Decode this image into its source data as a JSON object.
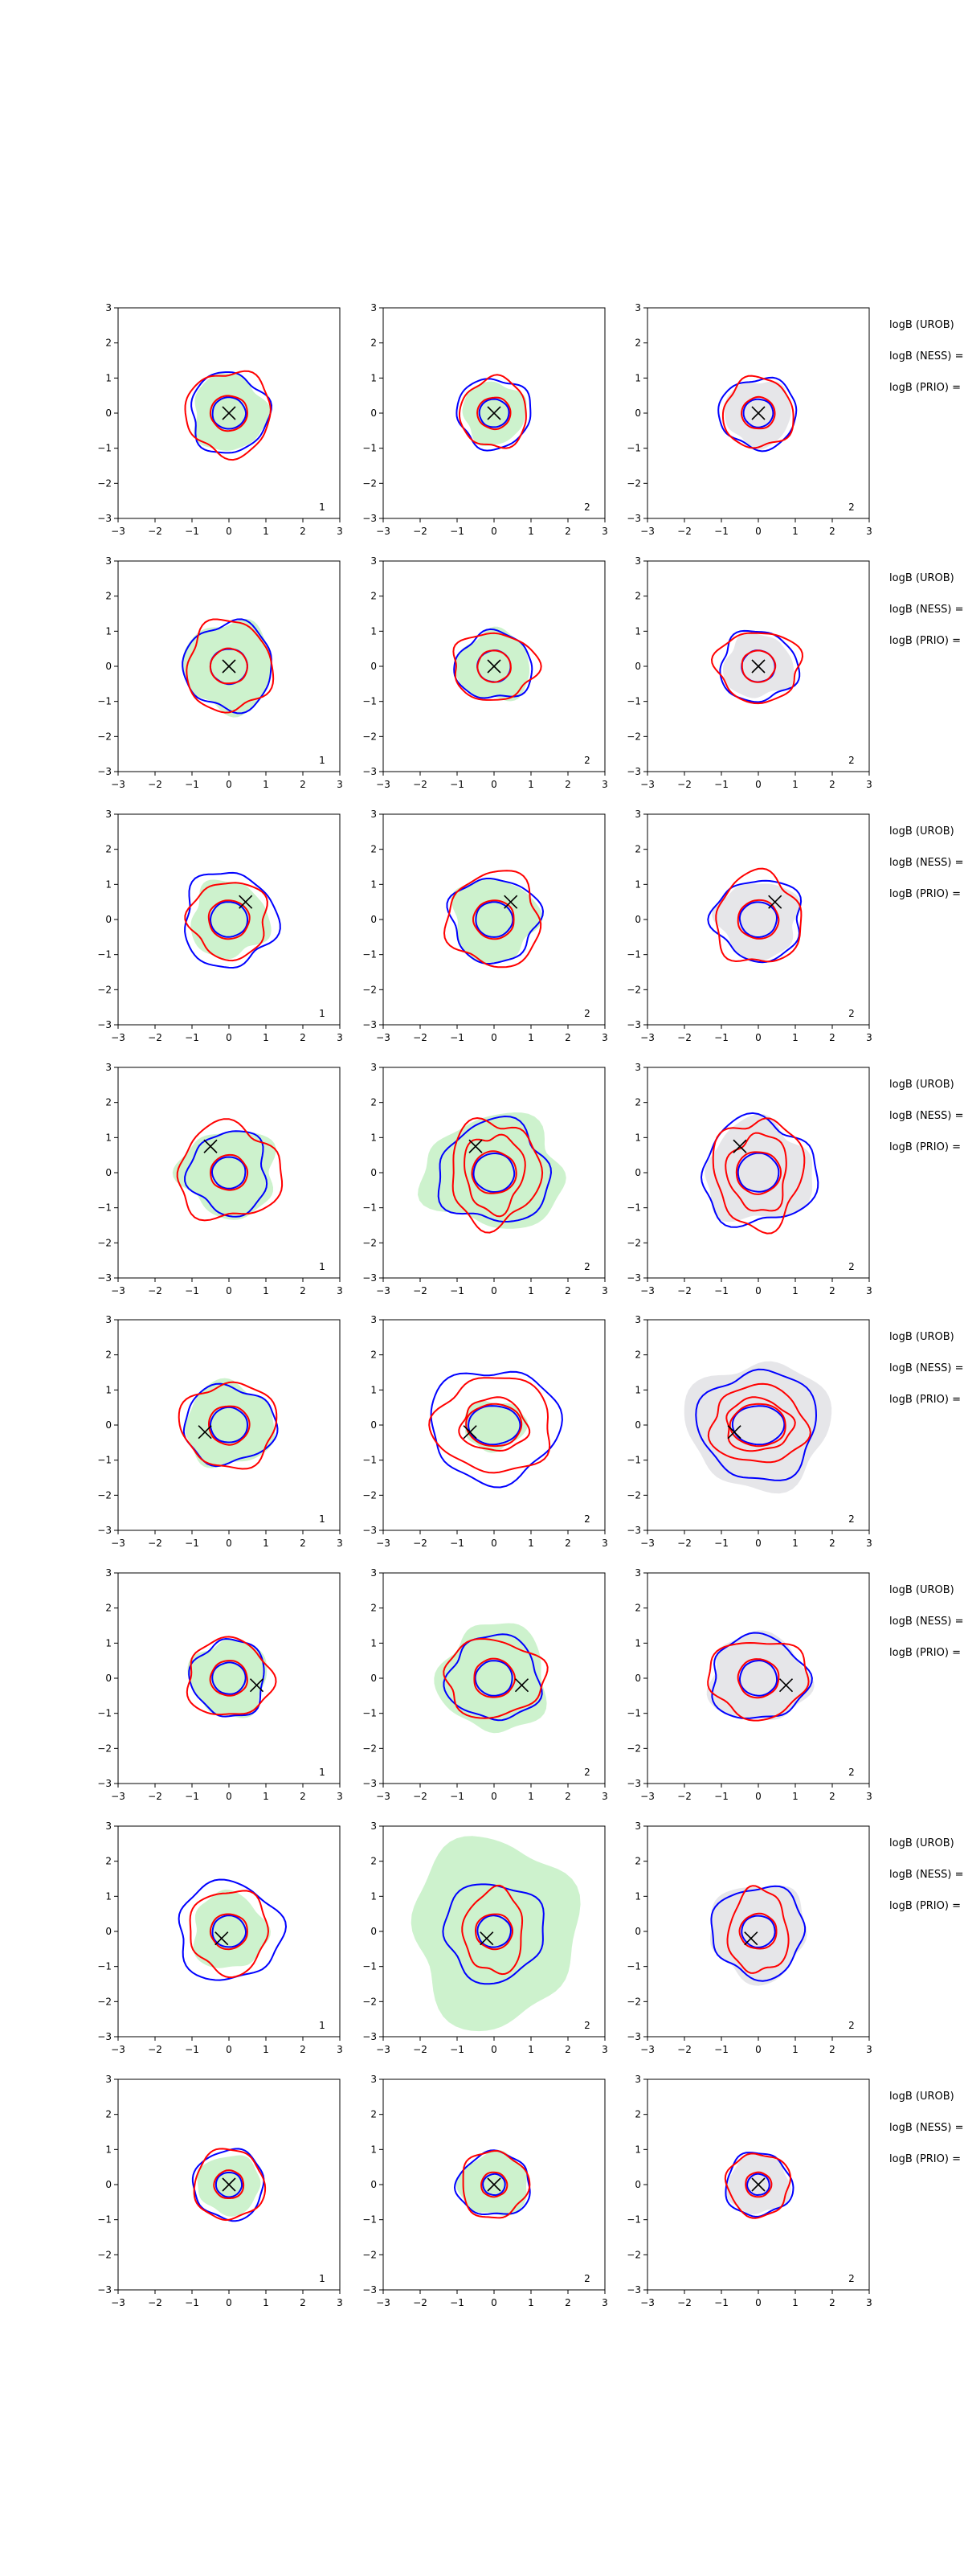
{
  "chart_data": {
    "type": "contour",
    "layout": {
      "rows": 8,
      "cols": 3
    },
    "xlim": [
      -3,
      3
    ],
    "ylim": [
      -3,
      3
    ],
    "xticks": [
      -3,
      -2,
      -1,
      0,
      1,
      2,
      3
    ],
    "yticks": [
      -3,
      -2,
      -1,
      0,
      1,
      2,
      3
    ],
    "colors": {
      "blue_contour": "#0000ff",
      "red_contour": "#ff0000",
      "green_fill": "#cdf2cd",
      "grey_fill": "#e6e6e9",
      "marker": "#000000"
    },
    "row_labels": [
      "logB (UROB)",
      "logB (NESS) =",
      "logB (PRIO) ="
    ],
    "rows": [
      {
        "marker": [
          0.0,
          0.0
        ],
        "panels": [
          {
            "label": "1",
            "fill": "green",
            "blue": [
              [
                0.45,
                0.45
              ],
              [
                1.05,
                1.15
              ]
            ],
            "red": [
              [
                0.5,
                0.5
              ],
              [
                1.15,
                1.2
              ]
            ],
            "green": [
              1.0,
              1.1
            ],
            "wobble": 0.12
          },
          {
            "label": "2",
            "fill": "green",
            "blue": [
              [
                0.4,
                0.4
              ],
              [
                1.0,
                1.0
              ]
            ],
            "red": [
              [
                0.45,
                0.45
              ],
              [
                0.9,
                1.0
              ]
            ],
            "green": [
              0.85,
              0.9
            ],
            "wobble": 0.1
          },
          {
            "label": "2",
            "fill": "grey",
            "blue": [
              [
                0.4,
                0.4
              ],
              [
                1.05,
                1.0
              ]
            ],
            "red": [
              [
                0.45,
                0.45
              ],
              [
                0.95,
                1.0
              ]
            ],
            "green": [
              0.9,
              0.95
            ],
            "wobble": 0.1
          }
        ]
      },
      {
        "marker": [
          0.0,
          0.0
        ],
        "panels": [
          {
            "label": "1",
            "fill": "green",
            "blue": [
              [
                0.5,
                0.5
              ],
              [
                1.2,
                1.25
              ]
            ],
            "red": [
              [
                0.5,
                0.5
              ],
              [
                1.15,
                1.3
              ]
            ],
            "green": [
              1.2,
              1.3
            ],
            "wobble": 0.12
          },
          {
            "label": "2",
            "fill": "green",
            "blue": [
              [
                0.45,
                0.45
              ],
              [
                1.05,
                0.95
              ]
            ],
            "red": [
              [
                0.45,
                0.45
              ],
              [
                1.15,
                0.95
              ]
            ],
            "green": [
              1.0,
              1.0
            ],
            "wobble": 0.12
          },
          {
            "label": "2",
            "fill": "grey",
            "blue": [
              [
                0.45,
                0.45
              ],
              [
                1.05,
                1.0
              ]
            ],
            "red": [
              [
                0.45,
                0.45
              ],
              [
                1.15,
                1.0
              ]
            ],
            "green": [
              0.95,
              0.9
            ],
            "wobble": 0.12
          }
        ]
      },
      {
        "marker": [
          0.45,
          0.5
        ],
        "panels": [
          {
            "label": "1",
            "fill": "green",
            "blue": [
              [
                0.5,
                0.5
              ],
              [
                1.25,
                1.35
              ]
            ],
            "red": [
              [
                0.55,
                0.55
              ],
              [
                1.05,
                1.1
              ]
            ],
            "green": [
              1.05,
              1.1
            ],
            "wobble": 0.14
          },
          {
            "label": "2",
            "fill": "green",
            "blue": [
              [
                0.5,
                0.5
              ],
              [
                1.2,
                1.2
              ]
            ],
            "red": [
              [
                0.55,
                0.55
              ],
              [
                1.25,
                1.35
              ]
            ],
            "green": [
              1.15,
              1.2
            ],
            "wobble": 0.14
          },
          {
            "label": "2",
            "fill": "grey",
            "blue": [
              [
                0.5,
                0.5
              ],
              [
                1.2,
                1.15
              ]
            ],
            "red": [
              [
                0.55,
                0.55
              ],
              [
                1.15,
                1.3
              ]
            ],
            "green": [
              1.1,
              1.1
            ],
            "wobble": 0.14
          }
        ]
      },
      {
        "marker": [
          -0.5,
          0.75
        ],
        "panels": [
          {
            "label": "1",
            "fill": "green",
            "blue": [
              [
                0.45,
                0.45
              ],
              [
                1.05,
                1.2
              ]
            ],
            "red": [
              [
                0.5,
                0.5
              ],
              [
                1.4,
                1.35
              ]
            ],
            "green": [
              1.3,
              1.25
            ],
            "wobble": 0.16
          },
          {
            "label": "2",
            "fill": "green",
            "blue": [
              [
                0.55,
                0.55
              ],
              [
                1.5,
                1.45
              ]
            ],
            "red": [
              [
                0.6,
                0.6
              ],
              [
                1.2,
                1.5
              ],
              [
                0.8,
                1.1
              ]
            ],
            "green": [
              1.9,
              1.6
            ],
            "wobble": 0.16
          },
          {
            "label": "2",
            "fill": "grey",
            "blue": [
              [
                0.55,
                0.55
              ],
              [
                1.55,
                1.5
              ]
            ],
            "red": [
              [
                0.6,
                0.6
              ],
              [
                1.2,
                1.55
              ],
              [
                0.8,
                1.1
              ]
            ],
            "green": [
              1.45,
              1.45
            ],
            "wobble": 0.16
          }
        ]
      },
      {
        "marker": [
          -0.65,
          -0.2
        ],
        "panels": [
          {
            "label": "1",
            "fill": "green",
            "blue": [
              [
                0.5,
                0.5
              ],
              [
                1.25,
                1.1
              ]
            ],
            "red": [
              [
                0.55,
                0.55
              ],
              [
                1.3,
                1.2
              ]
            ],
            "green": [
              1.2,
              1.2
            ],
            "wobble": 0.12
          },
          {
            "label": "2",
            "fill": "green",
            "blue": [
              [
                0.7,
                0.55
              ],
              [
                1.75,
                1.6
              ]
            ],
            "red": [
              [
                0.75,
                0.6
              ],
              [
                1.6,
                1.35
              ],
              [
                0.9,
                0.75
              ]
            ],
            "green": [
              0.85,
              0.7
            ],
            "wobble": 0.12
          },
          {
            "label": "2",
            "fill": "grey",
            "blue": [
              [
                0.7,
                0.55
              ],
              [
                1.6,
                1.55
              ]
            ],
            "red": [
              [
                0.75,
                0.6
              ],
              [
                1.3,
                1.1
              ],
              [
                0.9,
                0.75
              ]
            ],
            "green": [
              1.95,
              1.8
            ],
            "wobble": 0.12
          }
        ]
      },
      {
        "marker": [
          0.75,
          -0.2
        ],
        "panels": [
          {
            "label": "1",
            "fill": "green",
            "blue": [
              [
                0.45,
                0.45
              ],
              [
                1.0,
                1.1
              ]
            ],
            "red": [
              [
                0.5,
                0.5
              ],
              [
                1.15,
                1.1
              ]
            ],
            "green": [
              1.05,
              1.1
            ],
            "wobble": 0.12
          },
          {
            "label": "2",
            "fill": "green",
            "blue": [
              [
                0.5,
                0.5
              ],
              [
                1.25,
                1.2
              ]
            ],
            "red": [
              [
                0.55,
                0.55
              ],
              [
                1.35,
                1.1
              ]
            ],
            "green": [
              1.45,
              1.55
            ],
            "wobble": 0.13
          },
          {
            "label": "2",
            "fill": "grey",
            "blue": [
              [
                0.5,
                0.5
              ],
              [
                1.3,
                1.2
              ]
            ],
            "red": [
              [
                0.55,
                0.55
              ],
              [
                1.35,
                1.1
              ]
            ],
            "green": [
              1.35,
              1.25
            ],
            "wobble": 0.13
          }
        ]
      },
      {
        "marker": [
          -0.2,
          -0.2
        ],
        "panels": [
          {
            "label": "1",
            "fill": "green",
            "blue": [
              [
                0.45,
                0.45
              ],
              [
                1.4,
                1.4
              ]
            ],
            "red": [
              [
                0.5,
                0.5
              ],
              [
                1.05,
                1.2
              ]
            ],
            "green": [
              1.0,
              1.1
            ],
            "wobble": 0.12
          },
          {
            "label": "2",
            "fill": "green",
            "blue": [
              [
                0.45,
                0.45
              ],
              [
                1.35,
                1.4
              ]
            ],
            "red": [
              [
                0.5,
                0.5
              ],
              [
                0.8,
                1.2
              ]
            ],
            "green": [
              2.2,
              2.7
            ],
            "wobble": 0.12
          },
          {
            "label": "2",
            "fill": "grey",
            "blue": [
              [
                0.45,
                0.45
              ],
              [
                1.25,
                1.3
              ]
            ],
            "red": [
              [
                0.5,
                0.5
              ],
              [
                0.8,
                1.2
              ]
            ],
            "green": [
              1.3,
              1.4
            ],
            "wobble": 0.12
          }
        ]
      },
      {
        "marker": [
          0.0,
          0.0
        ],
        "panels": [
          {
            "label": "1",
            "fill": "green",
            "blue": [
              [
                0.35,
                0.35
              ],
              [
                0.95,
                1.0
              ]
            ],
            "red": [
              [
                0.4,
                0.4
              ],
              [
                0.95,
                1.0
              ]
            ],
            "green": [
              0.85,
              0.85
            ],
            "wobble": 0.08
          },
          {
            "label": "2",
            "fill": "green",
            "blue": [
              [
                0.3,
                0.3
              ],
              [
                1.0,
                0.9
              ]
            ],
            "red": [
              [
                0.35,
                0.35
              ],
              [
                0.9,
                0.95
              ]
            ],
            "green": [
              0.95,
              0.9
            ],
            "wobble": 0.1
          },
          {
            "label": "2",
            "fill": "grey",
            "blue": [
              [
                0.3,
                0.3
              ],
              [
                0.9,
                0.9
              ]
            ],
            "red": [
              [
                0.35,
                0.35
              ],
              [
                0.85,
                0.9
              ]
            ],
            "green": [
              0.85,
              0.85
            ],
            "wobble": 0.1
          }
        ]
      }
    ]
  }
}
